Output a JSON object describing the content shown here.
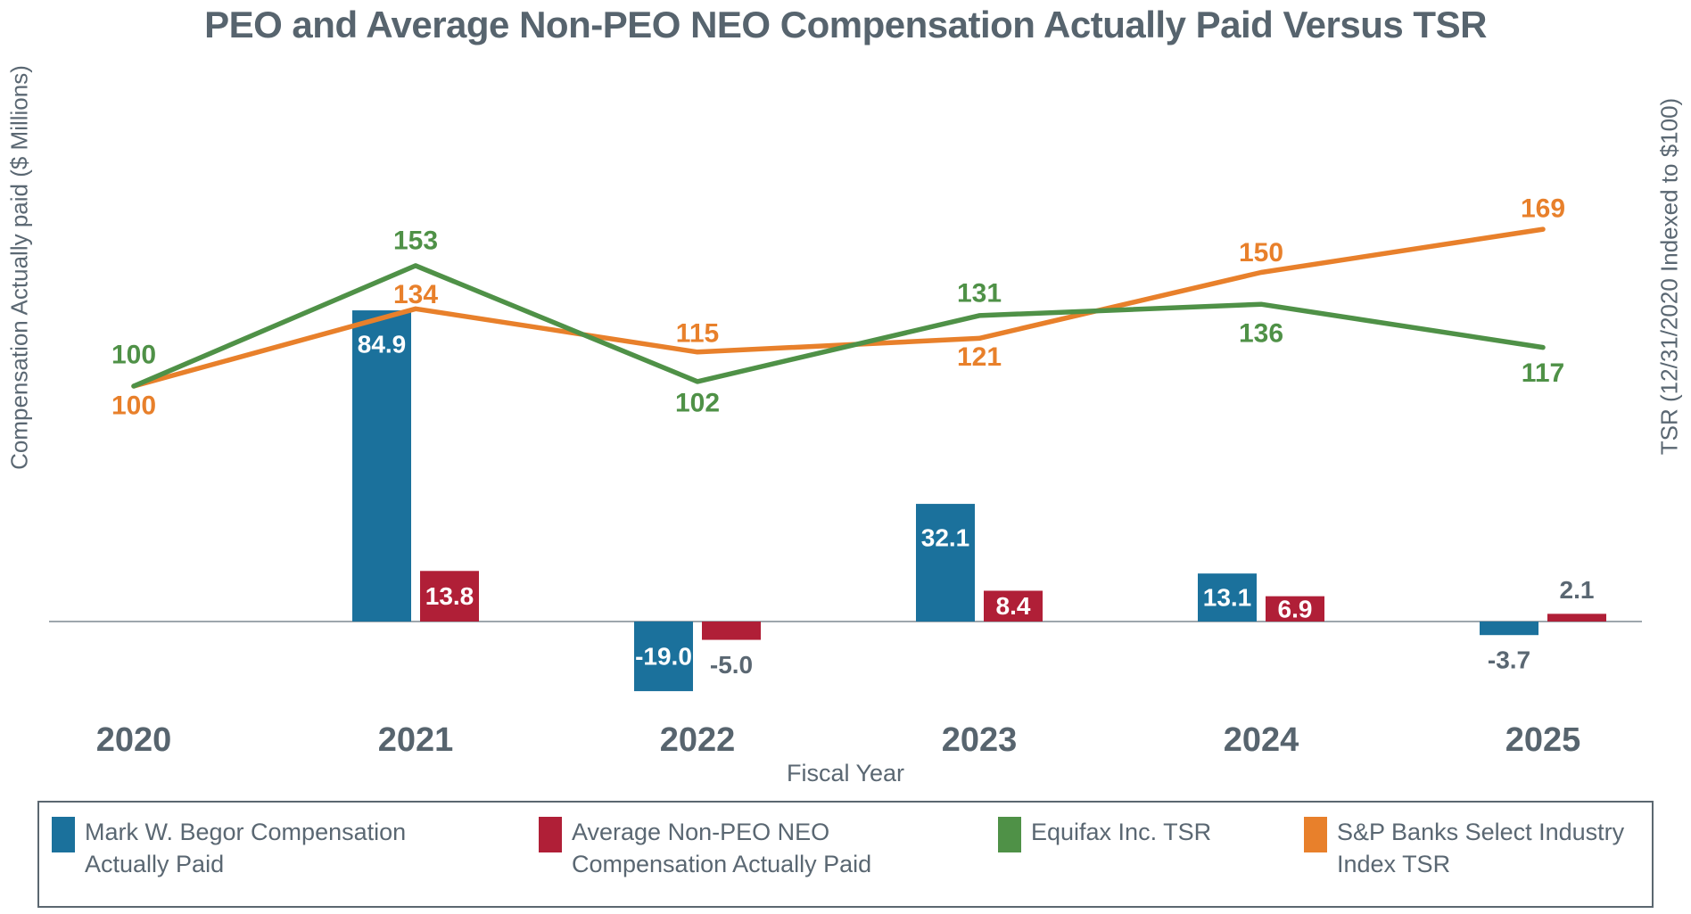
{
  "title": "PEO and Average Non-PEO NEO Compensation Actually Paid Versus TSR",
  "colors": {
    "peo": "#1b719c",
    "neo": "#b01f37",
    "equifax": "#4f9147",
    "sp": "#e8802b",
    "heading_text": "#57646e",
    "body_text": "#5a6772",
    "bar_label_inside": "#ffffff",
    "axis_line": "#7f8a92"
  },
  "axes": {
    "left_label": "Compensation Actually paid ($ Millions)",
    "right_label": "TSR (12/31/2020 Indexed to $100)",
    "x_label": "Fiscal Year"
  },
  "chart_data": {
    "type": "combo: grouped bar + line",
    "categories": [
      "2020",
      "2021",
      "2022",
      "2023",
      "2024",
      "2025"
    ],
    "x_axis_label": "Fiscal Year",
    "left_axis": {
      "label": "Compensation Actually paid ($ Millions)",
      "units": "$ Millions",
      "gridlines": false
    },
    "right_axis": {
      "label": "TSR (12/31/2020 Indexed to $100)",
      "indexed_base": 100
    },
    "legend_position": "bottom",
    "bar_series": [
      {
        "name": "Mark W. Begor Compensation Actually Paid",
        "color_key": "peo",
        "axis": "left",
        "values": [
          null,
          84.9,
          -19.0,
          32.1,
          13.1,
          -3.7
        ],
        "labels": [
          "",
          "84.9",
          "-19.0",
          "32.1",
          "13.1",
          "-3.7"
        ],
        "label_placement": [
          null,
          "inside",
          "inside",
          "inside",
          "inside",
          "below"
        ]
      },
      {
        "name": "Average Non-PEO NEO Compensation Actually Paid",
        "color_key": "neo",
        "axis": "left",
        "values": [
          null,
          13.8,
          -5.0,
          8.4,
          6.9,
          2.1
        ],
        "labels": [
          "",
          "13.8",
          "-5.0",
          "8.4",
          "6.9",
          "2.1"
        ],
        "label_placement": [
          null,
          "inside",
          "below",
          "inside",
          "inside",
          "above"
        ]
      }
    ],
    "line_series": [
      {
        "name": "Equifax Inc. TSR",
        "color_key": "equifax",
        "axis": "right",
        "values": [
          100,
          153,
          102,
          131,
          136,
          117
        ],
        "labels": [
          "100",
          "153",
          "102",
          "131",
          "136",
          "117"
        ],
        "label_dy": [
          -35,
          -28,
          24,
          -25,
          33,
          29
        ]
      },
      {
        "name": "S&P Banks Select Industry Index TSR",
        "color_key": "sp",
        "axis": "right",
        "values": [
          100,
          134,
          115,
          121,
          150,
          169
        ],
        "labels": [
          "100",
          "134",
          "115",
          "121",
          "150",
          "169"
        ],
        "label_dy": [
          22,
          -16,
          -21,
          21,
          -22,
          -23
        ]
      }
    ]
  },
  "legend": {
    "items": [
      {
        "label": "Mark W. Begor Compensation Actually Paid",
        "color_key": "peo"
      },
      {
        "label": "Average Non-PEO NEO Compensation Actually Paid",
        "color_key": "neo"
      },
      {
        "label": "Equifax Inc. TSR",
        "color_key": "equifax"
      },
      {
        "label": "S&P Banks Select Industry Index TSR",
        "color_key": "sp"
      }
    ]
  }
}
